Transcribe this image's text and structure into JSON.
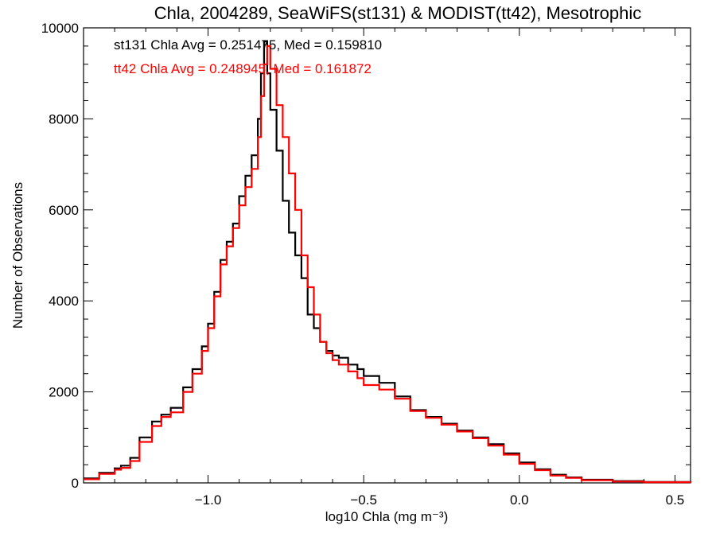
{
  "chart_data": {
    "type": "line",
    "title": "Chla, 2004289, SeaWiFS(st131) & MODIST(tt42), Mesotrophic",
    "xlabel": "log10 Chla (mg m⁻³)",
    "ylabel": "Number of Observations",
    "xlim": [
      -1.4,
      0.55
    ],
    "ylim": [
      0,
      10000
    ],
    "xticks": [
      -1.0,
      -0.5,
      0.0,
      0.5
    ],
    "xtick_labels": [
      "−1.0",
      "−0.5",
      "0.0",
      "0.5"
    ],
    "yticks": [
      0,
      2000,
      4000,
      6000,
      8000,
      10000
    ],
    "ytick_labels": [
      "0",
      "2000",
      "4000",
      "6000",
      "8000",
      "10000"
    ],
    "grid": false,
    "annotations": [
      {
        "text": "st131 Chla Avg = 0.251475, Med = 0.159810",
        "color": "#000000"
      },
      {
        "text": "tt42 Chla Avg = 0.248945, Med = 0.161872",
        "color": "#ff0000"
      }
    ],
    "series": [
      {
        "color": "#000000",
        "points": [
          [
            -1.4,
            100
          ],
          [
            -1.35,
            220
          ],
          [
            -1.3,
            320
          ],
          [
            -1.28,
            380
          ],
          [
            -1.25,
            550
          ],
          [
            -1.22,
            1000
          ],
          [
            -1.18,
            1350
          ],
          [
            -1.15,
            1500
          ],
          [
            -1.12,
            1650
          ],
          [
            -1.08,
            2100
          ],
          [
            -1.05,
            2500
          ],
          [
            -1.02,
            3000
          ],
          [
            -1.0,
            3500
          ],
          [
            -0.98,
            4200
          ],
          [
            -0.96,
            4900
          ],
          [
            -0.94,
            5300
          ],
          [
            -0.92,
            5700
          ],
          [
            -0.9,
            6300
          ],
          [
            -0.88,
            6750
          ],
          [
            -0.86,
            7200
          ],
          [
            -0.84,
            8000
          ],
          [
            -0.83,
            9000
          ],
          [
            -0.82,
            9700
          ],
          [
            -0.81,
            9000
          ],
          [
            -0.8,
            8200
          ],
          [
            -0.78,
            7300
          ],
          [
            -0.76,
            6200
          ],
          [
            -0.74,
            5500
          ],
          [
            -0.72,
            5000
          ],
          [
            -0.7,
            4500
          ],
          [
            -0.68,
            3700
          ],
          [
            -0.66,
            3400
          ],
          [
            -0.64,
            3100
          ],
          [
            -0.62,
            2900
          ],
          [
            -0.6,
            2800
          ],
          [
            -0.58,
            2750
          ],
          [
            -0.55,
            2600
          ],
          [
            -0.52,
            2500
          ],
          [
            -0.5,
            2350
          ],
          [
            -0.45,
            2200
          ],
          [
            -0.4,
            1900
          ],
          [
            -0.35,
            1600
          ],
          [
            -0.3,
            1450
          ],
          [
            -0.25,
            1300
          ],
          [
            -0.2,
            1150
          ],
          [
            -0.15,
            1000
          ],
          [
            -0.1,
            850
          ],
          [
            -0.05,
            650
          ],
          [
            0.0,
            450
          ],
          [
            0.05,
            300
          ],
          [
            0.1,
            180
          ],
          [
            0.15,
            120
          ],
          [
            0.2,
            70
          ],
          [
            0.3,
            40
          ],
          [
            0.4,
            20
          ],
          [
            0.55,
            10
          ]
        ]
      },
      {
        "color": "#ff0000",
        "points": [
          [
            -1.4,
            80
          ],
          [
            -1.35,
            200
          ],
          [
            -1.3,
            290
          ],
          [
            -1.28,
            330
          ],
          [
            -1.25,
            480
          ],
          [
            -1.22,
            900
          ],
          [
            -1.18,
            1250
          ],
          [
            -1.15,
            1450
          ],
          [
            -1.12,
            1550
          ],
          [
            -1.08,
            2000
          ],
          [
            -1.05,
            2400
          ],
          [
            -1.02,
            2900
          ],
          [
            -1.0,
            3400
          ],
          [
            -0.98,
            4100
          ],
          [
            -0.96,
            4800
          ],
          [
            -0.94,
            5200
          ],
          [
            -0.92,
            5600
          ],
          [
            -0.9,
            6100
          ],
          [
            -0.88,
            6500
          ],
          [
            -0.86,
            6900
          ],
          [
            -0.84,
            7600
          ],
          [
            -0.83,
            8500
          ],
          [
            -0.82,
            9200
          ],
          [
            -0.81,
            9600
          ],
          [
            -0.8,
            9100
          ],
          [
            -0.78,
            8300
          ],
          [
            -0.76,
            7600
          ],
          [
            -0.74,
            6800
          ],
          [
            -0.72,
            6000
          ],
          [
            -0.7,
            5000
          ],
          [
            -0.68,
            4300
          ],
          [
            -0.66,
            3700
          ],
          [
            -0.64,
            3100
          ],
          [
            -0.62,
            2850
          ],
          [
            -0.6,
            2700
          ],
          [
            -0.58,
            2600
          ],
          [
            -0.55,
            2450
          ],
          [
            -0.52,
            2300
          ],
          [
            -0.5,
            2150
          ],
          [
            -0.45,
            2050
          ],
          [
            -0.4,
            1850
          ],
          [
            -0.35,
            1580
          ],
          [
            -0.3,
            1430
          ],
          [
            -0.25,
            1280
          ],
          [
            -0.2,
            1130
          ],
          [
            -0.15,
            980
          ],
          [
            -0.1,
            820
          ],
          [
            -0.05,
            620
          ],
          [
            0.0,
            420
          ],
          [
            0.05,
            280
          ],
          [
            0.1,
            160
          ],
          [
            0.15,
            110
          ],
          [
            0.2,
            60
          ],
          [
            0.3,
            30
          ],
          [
            0.4,
            15
          ],
          [
            0.55,
            8
          ]
        ]
      }
    ]
  }
}
